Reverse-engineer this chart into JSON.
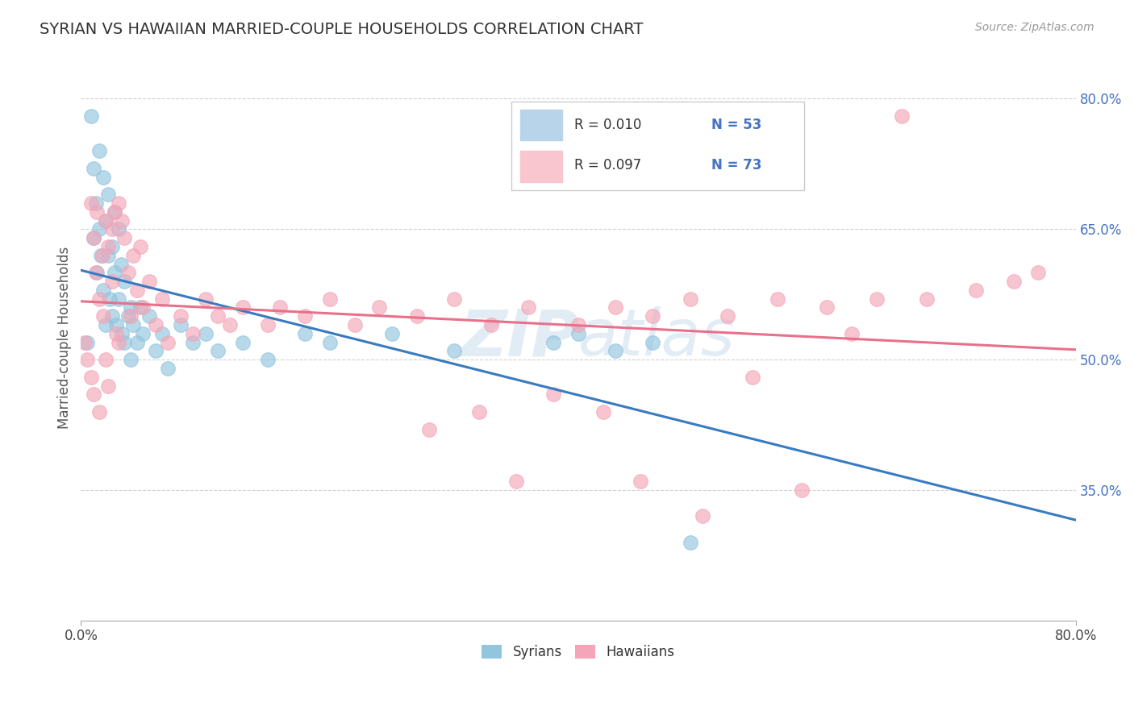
{
  "title": "SYRIAN VS HAWAIIAN MARRIED-COUPLE HOUSEHOLDS CORRELATION CHART",
  "source": "Source: ZipAtlas.com",
  "ylabel": "Married-couple Households",
  "xlim": [
    0.0,
    0.8
  ],
  "ylim": [
    0.2,
    0.85
  ],
  "ytick_labels": [
    "35.0%",
    "50.0%",
    "65.0%",
    "80.0%"
  ],
  "ytick_values": [
    0.35,
    0.5,
    0.65,
    0.8
  ],
  "xtick_labels": [
    "0.0%",
    "80.0%"
  ],
  "xtick_values": [
    0.0,
    0.8
  ],
  "blue_color": "#92c5de",
  "pink_color": "#f4a6b8",
  "blue_line_color": "#3a7abf",
  "pink_line_color": "#e8708a",
  "blue_legend_color": "#b8d4ea",
  "pink_legend_color": "#f9c6d0",
  "tick_color": "#4472c4",
  "watermark_color": "#b8d0e8",
  "watermark_alpha": 0.4,
  "legend_text_color": "#4472c4",
  "legend_r_text": "#333333",
  "title_fontsize": 14,
  "axis_label_fontsize": 12,
  "tick_fontsize": 12,
  "syrians_x": [
    0.005,
    0.008,
    0.01,
    0.01,
    0.012,
    0.013,
    0.015,
    0.015,
    0.016,
    0.018,
    0.018,
    0.02,
    0.02,
    0.022,
    0.022,
    0.023,
    0.025,
    0.025,
    0.027,
    0.027,
    0.028,
    0.03,
    0.03,
    0.032,
    0.033,
    0.035,
    0.035,
    0.038,
    0.04,
    0.04,
    0.042,
    0.045,
    0.048,
    0.05,
    0.055,
    0.06,
    0.065,
    0.07,
    0.08,
    0.09,
    0.1,
    0.11,
    0.13,
    0.15,
    0.18,
    0.2,
    0.25,
    0.3,
    0.38,
    0.4,
    0.43,
    0.46,
    0.49
  ],
  "syrians_y": [
    0.52,
    0.78,
    0.72,
    0.64,
    0.68,
    0.6,
    0.74,
    0.65,
    0.62,
    0.71,
    0.58,
    0.66,
    0.54,
    0.69,
    0.62,
    0.57,
    0.63,
    0.55,
    0.67,
    0.6,
    0.54,
    0.65,
    0.57,
    0.61,
    0.53,
    0.59,
    0.52,
    0.55,
    0.56,
    0.5,
    0.54,
    0.52,
    0.56,
    0.53,
    0.55,
    0.51,
    0.53,
    0.49,
    0.54,
    0.52,
    0.53,
    0.51,
    0.52,
    0.5,
    0.53,
    0.52,
    0.53,
    0.51,
    0.52,
    0.53,
    0.51,
    0.52,
    0.29
  ],
  "hawaiians_x": [
    0.003,
    0.005,
    0.008,
    0.008,
    0.01,
    0.01,
    0.012,
    0.013,
    0.015,
    0.015,
    0.017,
    0.018,
    0.02,
    0.02,
    0.022,
    0.022,
    0.025,
    0.025,
    0.027,
    0.028,
    0.03,
    0.03,
    0.033,
    0.035,
    0.038,
    0.04,
    0.042,
    0.045,
    0.048,
    0.05,
    0.055,
    0.06,
    0.065,
    0.07,
    0.08,
    0.09,
    0.1,
    0.11,
    0.12,
    0.13,
    0.15,
    0.16,
    0.18,
    0.2,
    0.22,
    0.24,
    0.27,
    0.3,
    0.33,
    0.36,
    0.4,
    0.43,
    0.46,
    0.49,
    0.52,
    0.56,
    0.6,
    0.64,
    0.68,
    0.72,
    0.75,
    0.77,
    0.28,
    0.32,
    0.35,
    0.38,
    0.42,
    0.45,
    0.5,
    0.54,
    0.58,
    0.62,
    0.66
  ],
  "hawaiians_y": [
    0.52,
    0.5,
    0.68,
    0.48,
    0.64,
    0.46,
    0.6,
    0.67,
    0.57,
    0.44,
    0.62,
    0.55,
    0.66,
    0.5,
    0.63,
    0.47,
    0.65,
    0.59,
    0.67,
    0.53,
    0.68,
    0.52,
    0.66,
    0.64,
    0.6,
    0.55,
    0.62,
    0.58,
    0.63,
    0.56,
    0.59,
    0.54,
    0.57,
    0.52,
    0.55,
    0.53,
    0.57,
    0.55,
    0.54,
    0.56,
    0.54,
    0.56,
    0.55,
    0.57,
    0.54,
    0.56,
    0.55,
    0.57,
    0.54,
    0.56,
    0.54,
    0.56,
    0.55,
    0.57,
    0.55,
    0.57,
    0.56,
    0.57,
    0.57,
    0.58,
    0.59,
    0.6,
    0.42,
    0.44,
    0.36,
    0.46,
    0.44,
    0.36,
    0.32,
    0.48,
    0.35,
    0.53,
    0.78
  ]
}
